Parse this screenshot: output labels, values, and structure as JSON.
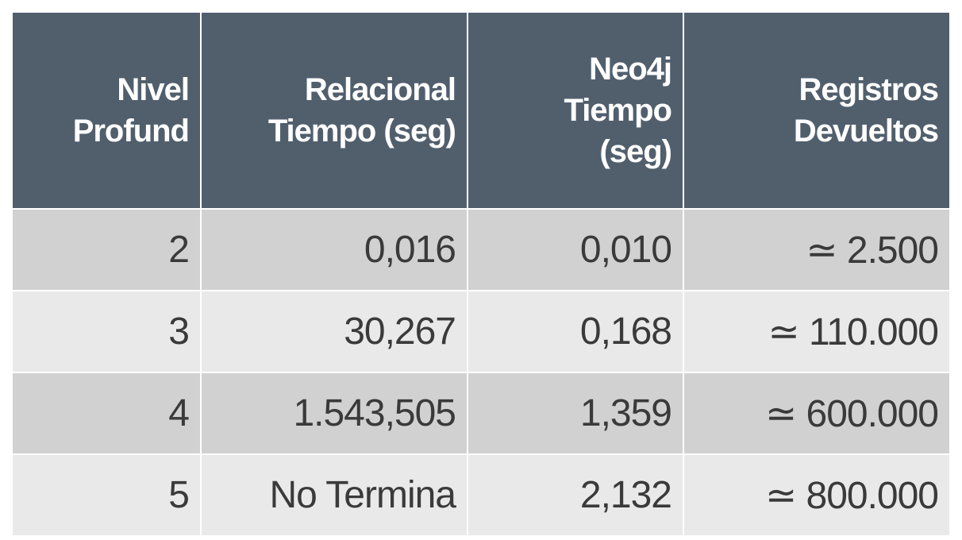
{
  "table": {
    "header": [
      [
        "Nivel",
        "Profund"
      ],
      [
        "Relacional",
        "Tiempo (seg)"
      ],
      [
        "Neo4j",
        "Tiempo",
        "(seg)"
      ],
      [
        "Registros",
        "Devueltos"
      ]
    ],
    "rows": [
      [
        "2",
        "0,016",
        "0,010",
        "≃ 2.500"
      ],
      [
        "3",
        "30,267",
        "0,168",
        "≃ 110.000"
      ],
      [
        "4",
        "1.543,505",
        "1,359",
        "≃ 600.000"
      ],
      [
        "5",
        "No Termina",
        "2,132",
        "≃ 800.000"
      ]
    ]
  }
}
